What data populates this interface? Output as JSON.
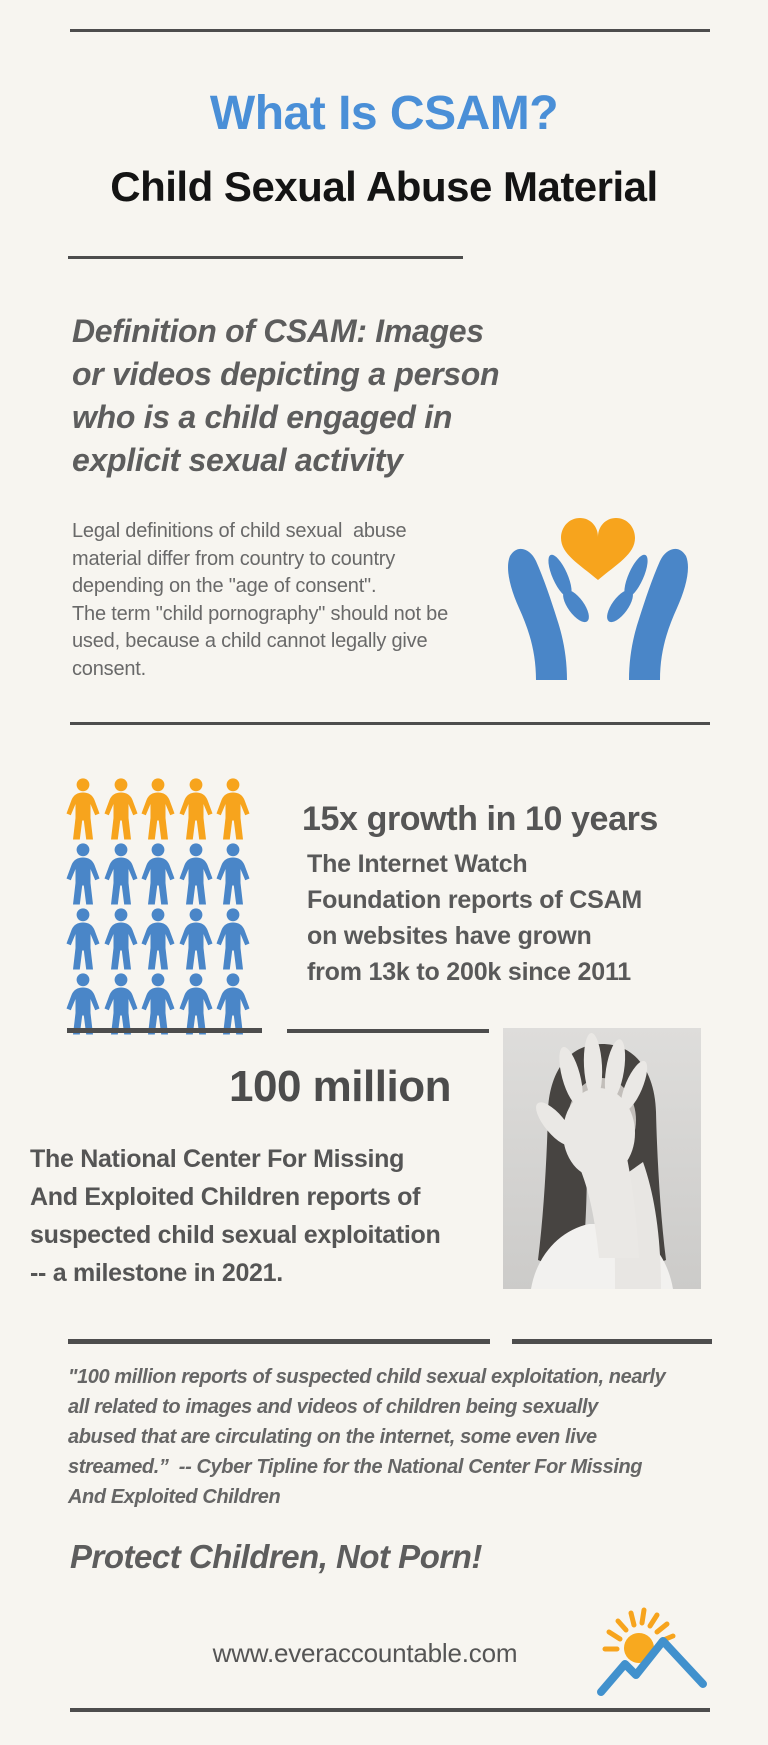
{
  "header": {
    "title": "What Is CSAM?",
    "subtitle": "Child Sexual Abuse Material"
  },
  "definition": {
    "text": "Definition of CSAM: Images\nor videos depicting a person\nwho is a child engaged in\nexplicit sexual activity"
  },
  "legal": {
    "text": "Legal definitions of child sexual  abuse\nmaterial differ from country to country\ndepending on the \"age of consent\".\nThe term \"child pornography\" should not be\nused, because a child cannot legally give\nconsent."
  },
  "growth_stat": {
    "headline": "15x growth in 10 years",
    "body": "The Internet Watch\nFoundation reports of CSAM\non websites have grown\nfrom 13k to 200k since 2011",
    "pictograph": {
      "type": "pictograph",
      "columns": 5,
      "row_colors": [
        "orange",
        "blue",
        "blue",
        "blue"
      ],
      "colors": {
        "orange": "#f7a41d",
        "blue": "#4a86c8"
      },
      "total_icons": 20
    }
  },
  "milestone_stat": {
    "headline": "100 million",
    "body": "The National Center For Missing\nAnd Exploited Children reports of\nsuspected child sexual exploitation\n-- a milestone in 2021."
  },
  "quote": {
    "text": "\"100 million reports of suspected child sexual exploitation, nearly\nall related to images and videos of children being sexually\nabused that are circulating on the internet, some even live\nstreamed.”  -- Cyber Tipline for the National Center For Missing\nAnd Exploited Children"
  },
  "tagline": "Protect Children, Not Porn!",
  "footer": {
    "website": "www.everaccountable.com"
  },
  "colors": {
    "background": "#f7f5f0",
    "accent_blue": "#4a8fd7",
    "icon_blue": "#4a86c8",
    "accent_orange": "#f7a41d",
    "divider_gray": "#4d4d4d",
    "text_gray": "#5d5d5d"
  }
}
